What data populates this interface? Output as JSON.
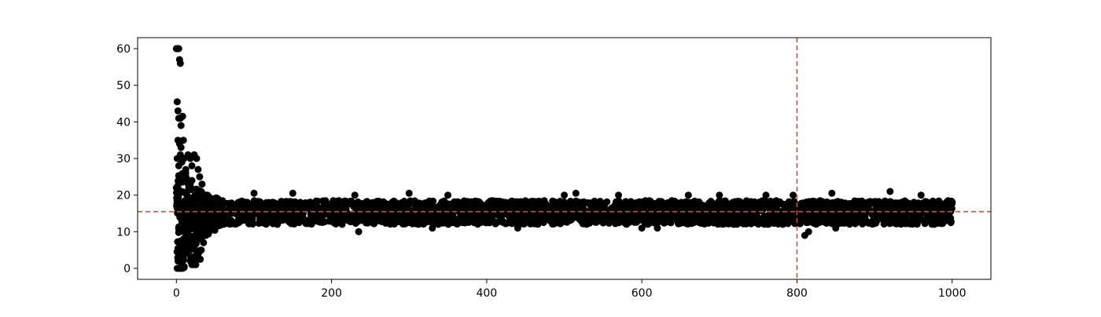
{
  "chart_data": {
    "type": "scatter",
    "title": "",
    "xlabel": "",
    "ylabel": "",
    "xlim": [
      -50,
      1050
    ],
    "ylim": [
      -3,
      63
    ],
    "xticks": [
      0,
      200,
      400,
      600,
      800,
      1000
    ],
    "yticks": [
      0,
      10,
      20,
      30,
      40,
      50,
      60
    ],
    "grid": false,
    "legend": "none",
    "marker_color": "#000000",
    "reference_lines": [
      {
        "orientation": "horizontal",
        "value": 15.5,
        "color": "#e8462a",
        "style": "dashed"
      },
      {
        "orientation": "vertical",
        "value": 800,
        "color": "#e8462a",
        "style": "dashed"
      }
    ],
    "series": [
      {
        "points": [
          [
            0,
            60
          ],
          [
            1,
            60
          ],
          [
            2,
            60
          ],
          [
            3,
            60
          ],
          [
            4,
            57
          ],
          [
            5,
            56
          ],
          [
            1,
            45.5
          ],
          [
            2,
            43
          ],
          [
            3,
            41
          ],
          [
            5,
            41
          ],
          [
            6,
            39
          ],
          [
            8,
            41.5
          ],
          [
            2,
            35
          ],
          [
            4,
            34
          ],
          [
            6,
            33
          ],
          [
            9,
            35
          ],
          [
            1,
            30
          ],
          [
            3,
            28
          ],
          [
            5,
            31
          ],
          [
            7,
            29
          ],
          [
            10,
            30
          ],
          [
            12,
            27
          ],
          [
            15,
            31
          ],
          [
            18,
            30
          ],
          [
            20,
            28
          ],
          [
            23,
            31
          ],
          [
            26,
            30
          ],
          [
            28,
            27
          ],
          [
            30,
            25
          ],
          [
            33,
            23
          ],
          [
            1,
            0
          ],
          [
            3,
            0
          ],
          [
            5,
            0
          ],
          [
            8,
            0
          ],
          [
            10,
            0.5
          ],
          [
            2,
            2
          ],
          [
            4,
            4
          ],
          [
            6,
            6
          ],
          [
            9,
            3
          ],
          [
            12,
            5
          ],
          [
            15,
            7
          ],
          [
            18,
            2
          ],
          [
            20,
            1
          ],
          [
            22,
            1
          ],
          [
            25,
            1
          ],
          [
            28,
            3
          ],
          [
            32,
            5
          ],
          [
            35,
            7
          ],
          [
            38,
            9
          ],
          [
            0,
            22
          ],
          [
            2,
            20
          ],
          [
            4,
            18
          ],
          [
            6,
            24
          ],
          [
            8,
            16
          ],
          [
            10,
            12
          ],
          [
            12,
            26
          ],
          [
            14,
            10
          ],
          [
            16,
            22
          ],
          [
            18,
            8
          ],
          [
            20,
            24
          ],
          [
            22,
            14
          ],
          [
            24,
            20
          ],
          [
            26,
            9
          ],
          [
            28,
            19
          ],
          [
            30,
            12
          ],
          [
            32,
            21
          ],
          [
            34,
            10
          ],
          [
            36,
            18
          ],
          [
            38,
            13
          ],
          [
            40,
            20
          ],
          [
            42,
            11
          ],
          [
            44,
            17
          ],
          [
            46,
            12
          ],
          [
            48,
            19
          ],
          [
            50,
            13
          ],
          [
            52,
            18
          ],
          [
            55,
            12
          ],
          [
            58,
            17
          ],
          [
            60,
            13
          ],
          [
            100,
            20.5
          ],
          [
            150,
            20.5
          ],
          [
            230,
            20
          ],
          [
            235,
            10
          ],
          [
            300,
            20.5
          ],
          [
            330,
            11
          ],
          [
            350,
            20
          ],
          [
            440,
            11
          ],
          [
            500,
            20
          ],
          [
            515,
            20.5
          ],
          [
            570,
            20
          ],
          [
            600,
            11
          ],
          [
            620,
            11
          ],
          [
            660,
            20
          ],
          [
            700,
            20
          ],
          [
            760,
            20
          ],
          [
            795,
            20
          ],
          [
            810,
            9
          ],
          [
            815,
            10
          ],
          [
            845,
            20.5
          ],
          [
            850,
            11
          ],
          [
            920,
            21
          ],
          [
            960,
            20
          ]
        ]
      }
    ]
  }
}
